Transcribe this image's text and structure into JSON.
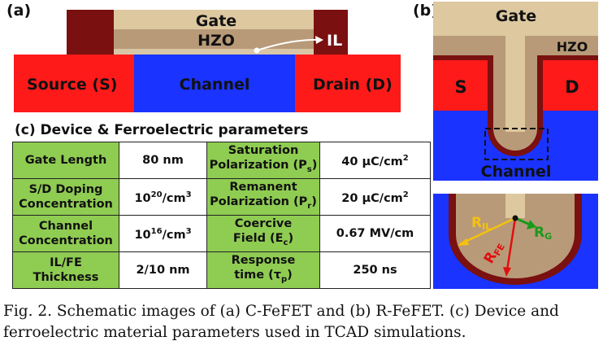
{
  "panel_a": {
    "label": "(a)",
    "gate": "Gate",
    "hzo": "HZO",
    "il": "IL",
    "source": "Source (S)",
    "channel": "Channel",
    "drain": "Drain (D)"
  },
  "panel_b": {
    "label": "(b)",
    "gate": "Gate",
    "hzo": "HZO",
    "source": "S",
    "drain": "D",
    "channel": "Channel",
    "r_il": "R",
    "r_il_sub": "IL",
    "r_fe": "R",
    "r_fe_sub": "FE",
    "r_g": "R",
    "r_g_sub": "G"
  },
  "table": {
    "title": "(c) Device & Ferroelectric parameters",
    "rows": [
      {
        "l1": "Gate Length",
        "v1": "80 nm",
        "l2a": "Saturation",
        "l2b": "Polarization (P",
        "l2b_sub": "s",
        "l2b_end": ")",
        "v2": "40 μC/cm",
        "v2_sup": "2"
      },
      {
        "l1a": "S/D Doping",
        "l1b": "Concentration",
        "v1": "10",
        "v1_sup": "20",
        "v1_end": "/cm",
        "v1_sup2": "3",
        "l2a": "Remanent",
        "l2b": "Polarization (P",
        "l2b_sub": "r",
        "l2b_end": ")",
        "v2": "20 μC/cm",
        "v2_sup": "2"
      },
      {
        "l1a": "Channel",
        "l1b": "Concentration",
        "v1": "10",
        "v1_sup": "16",
        "v1_end": "/cm",
        "v1_sup2": "3",
        "l2a": "Coercive",
        "l2b": "Field (E",
        "l2b_sub": "c",
        "l2b_end": ")",
        "v2": "0.67 MV/cm"
      },
      {
        "l1a": "IL/FE",
        "l1b": "Thickness",
        "v1": "2/10 nm",
        "l2a": "Response",
        "l2b": "time (τ",
        "l2b_sub": "p",
        "l2b_end": ")",
        "v2": "250 ns"
      }
    ]
  },
  "caption": "Fig. 2. Schematic images of (a) C-FeFET and (b) R-FeFET. (c) Device and ferroelectric material parameters used in TCAD simulations.",
  "colors": {
    "source_drain": "#ff1a1a",
    "channel": "#1a33ff",
    "gate": "#ddc8a0",
    "hzo": "#b89a78",
    "spacer": "#7a1010",
    "table_label": "#8fcc52"
  }
}
